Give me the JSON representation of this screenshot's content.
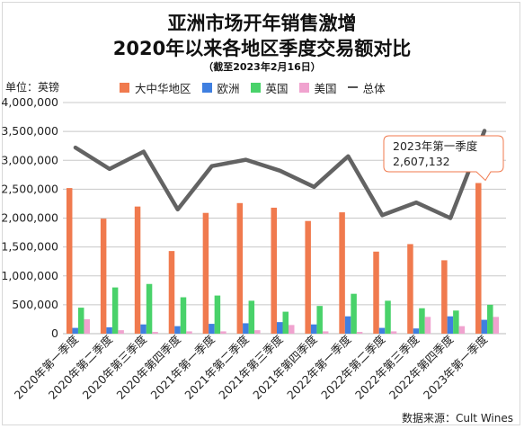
{
  "title_line1": "亚洲市场开年销售激增",
  "title_line2": "2020年以来各地区季度交易额对比",
  "subtitle": "（截至2023年2月16日）",
  "unit_label": "单位：英镑",
  "source": "数据来源：Cult Wines",
  "chart_data": {
    "type": "bar",
    "categories": [
      "2020年第一季度",
      "2020年第二季度",
      "2020年第三季度",
      "2020年第四季度",
      "2021年第一季度",
      "2021年第二季度",
      "2021年第三季度",
      "2021年第四季度",
      "2022年第一季度",
      "2022年第二季度",
      "2022年第三季度",
      "2022年第四季度",
      "2023年第一季度"
    ],
    "series": [
      {
        "name": "大中华地区",
        "color": "#f07a4e",
        "values": [
          2520000,
          1990000,
          2200000,
          1430000,
          2090000,
          2260000,
          2180000,
          1950000,
          2100000,
          1420000,
          1550000,
          1270000,
          2607132
        ]
      },
      {
        "name": "欧洲",
        "color": "#3f7fe0",
        "values": [
          100000,
          110000,
          160000,
          130000,
          170000,
          180000,
          200000,
          160000,
          300000,
          100000,
          90000,
          300000,
          240000
        ]
      },
      {
        "name": "英国",
        "color": "#49d26a",
        "values": [
          450000,
          800000,
          860000,
          630000,
          660000,
          570000,
          380000,
          480000,
          690000,
          570000,
          440000,
          400000,
          500000
        ]
      },
      {
        "name": "美国",
        "color": "#f0a3cf",
        "values": [
          250000,
          60000,
          30000,
          40000,
          40000,
          60000,
          150000,
          40000,
          30000,
          40000,
          290000,
          130000,
          290000
        ]
      },
      {
        "name": "总体",
        "type": "line",
        "color": "#636363",
        "values": [
          3220000,
          2850000,
          3150000,
          2150000,
          2900000,
          3010000,
          2820000,
          2540000,
          3070000,
          2050000,
          2270000,
          2000000,
          3510000
        ]
      }
    ],
    "ylim": [
      0,
      4000000
    ],
    "yticks": [
      "0",
      "500,000",
      "1,000,000",
      "1,500,000",
      "2,000,000",
      "2,500,000",
      "3,000,000",
      "3,500,000",
      "4,000,000"
    ],
    "grid": true,
    "legend_position": "top",
    "annotation": {
      "line1": "2023年第一季度",
      "line2": "2,607,132",
      "category_index": 12
    }
  }
}
